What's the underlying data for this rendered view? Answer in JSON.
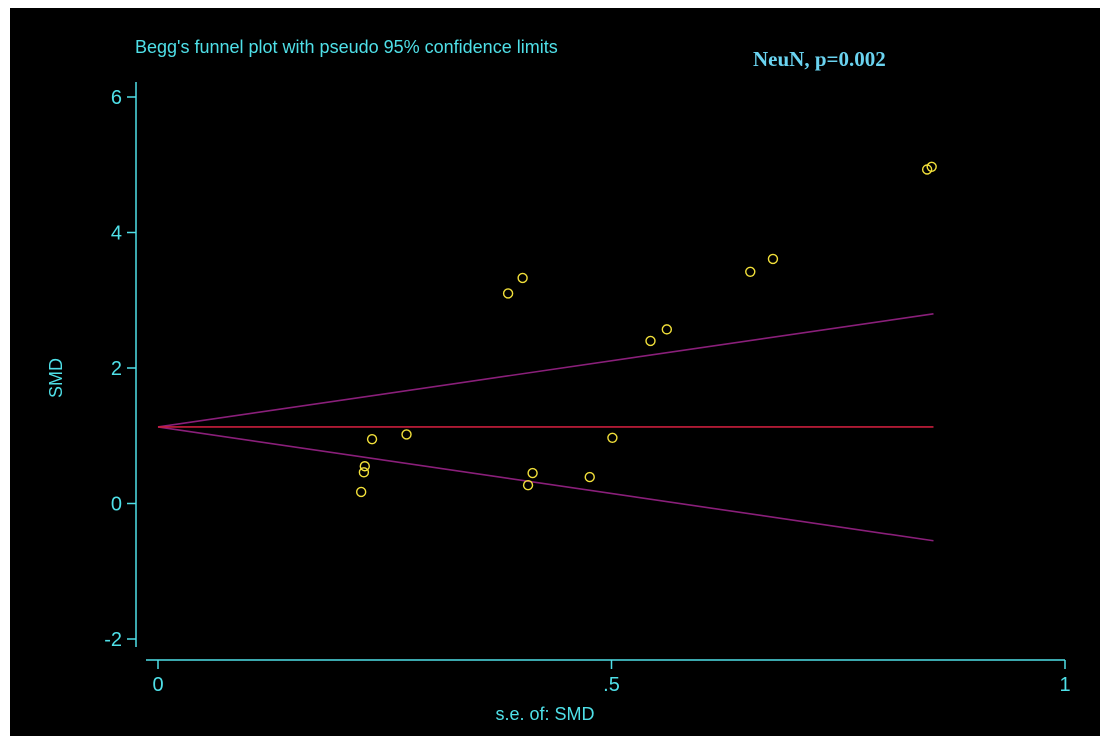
{
  "chart_data": {
    "type": "scatter",
    "title": "Begg's funnel plot with pseudo 95% confidence limits",
    "annotation": "NeuN, p=0.002",
    "xlabel": "s.e. of: SMD",
    "ylabel": "SMD",
    "xlim": [
      0,
      1
    ],
    "ylim": [
      -2,
      6
    ],
    "xticks": [
      0,
      0.5,
      1
    ],
    "xtick_labels": [
      "0",
      ".5",
      "1"
    ],
    "yticks": [
      -2,
      0,
      2,
      4,
      6
    ],
    "ytick_labels": [
      "-2",
      "0",
      "2",
      "4",
      "6"
    ],
    "grid": false,
    "colors": {
      "background": "#000000",
      "axis": "#4fe0e8",
      "points": "#f2e03a",
      "pooled_line": "#c81e3c",
      "confidence_limits": "#8a1f7a",
      "annotation": "#6ad3f0"
    },
    "pooled_estimate": 1.13,
    "confidence_limits": {
      "x": [
        0,
        0.855
      ],
      "upper": [
        1.13,
        2.8
      ],
      "lower": [
        1.13,
        -0.55
      ]
    },
    "points": [
      {
        "x": 0.224,
        "y": 0.17
      },
      {
        "x": 0.227,
        "y": 0.46
      },
      {
        "x": 0.228,
        "y": 0.55
      },
      {
        "x": 0.236,
        "y": 0.95
      },
      {
        "x": 0.274,
        "y": 1.02
      },
      {
        "x": 0.386,
        "y": 3.1
      },
      {
        "x": 0.402,
        "y": 3.33
      },
      {
        "x": 0.408,
        "y": 0.27
      },
      {
        "x": 0.413,
        "y": 0.45
      },
      {
        "x": 0.476,
        "y": 0.39
      },
      {
        "x": 0.501,
        "y": 0.97
      },
      {
        "x": 0.543,
        "y": 2.4
      },
      {
        "x": 0.561,
        "y": 2.57
      },
      {
        "x": 0.653,
        "y": 3.42
      },
      {
        "x": 0.678,
        "y": 3.61
      },
      {
        "x": 0.848,
        "y": 4.93
      },
      {
        "x": 0.853,
        "y": 4.97
      }
    ]
  }
}
